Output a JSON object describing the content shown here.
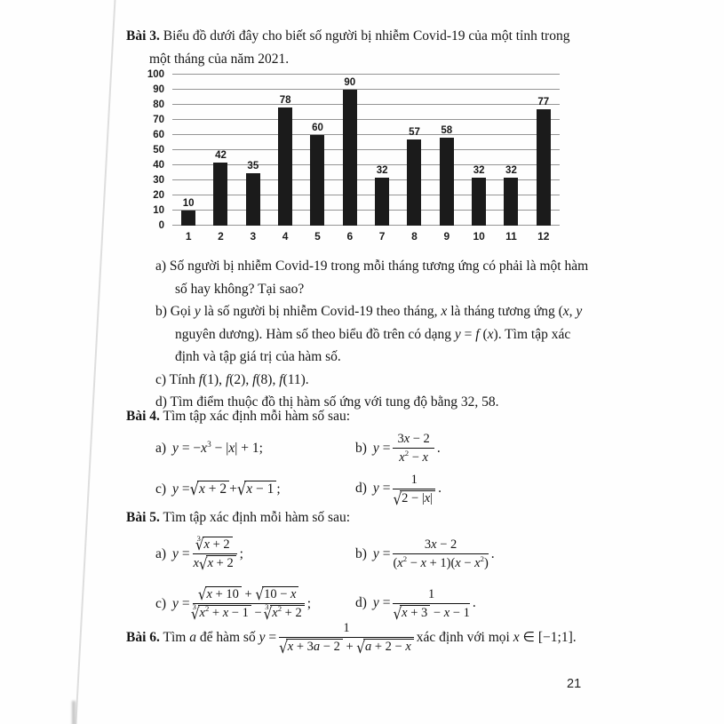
{
  "page_number": "21",
  "math": {
    "sqrt_symbol": "√",
    "root_index_3": "3"
  },
  "bai3": {
    "heading": [
      {
        "t": "Bài 3.",
        "b": true
      },
      {
        "t": " Biểu đồ dưới đây cho biết số người bị nhiễm Covid-19 của một tỉnh trong"
      }
    ],
    "heading2": "một tháng của năm 2021.",
    "qa1": "a) Số người bị nhiễm Covid-19 trong mỗi tháng tương ứng có phải là một hàm",
    "qa2": "số hay không? Tại sao?",
    "qb1": [
      {
        "t": "b) Gọi "
      },
      {
        "t": "y",
        "i": true
      },
      {
        "t": " là số người bị nhiễm Covid-19 theo tháng, "
      },
      {
        "t": "x",
        "i": true
      },
      {
        "t": " là tháng tương ứng ("
      },
      {
        "t": "x",
        "i": true
      },
      {
        "t": ", "
      },
      {
        "t": "y",
        "i": true
      }
    ],
    "qb2": [
      {
        "t": "nguyên dương). Hàm số theo biểu đồ trên có dạng "
      },
      {
        "t": "y",
        "i": true
      },
      {
        "t": " = "
      },
      {
        "t": "f",
        "i": true
      },
      {
        "t": " ("
      },
      {
        "t": "x",
        "i": true
      },
      {
        "t": "). Tìm tập xác"
      }
    ],
    "qb3": "định và tập giá trị của hàm số.",
    "qc": [
      {
        "t": "c) Tính "
      },
      {
        "t": "f",
        "i": true
      },
      {
        "t": "(1), "
      },
      {
        "t": "f",
        "i": true
      },
      {
        "t": "(2), "
      },
      {
        "t": "f",
        "i": true
      },
      {
        "t": "(8), "
      },
      {
        "t": "f",
        "i": true
      },
      {
        "t": "(11)."
      }
    ],
    "qd": "d) Tìm điểm thuộc đồ thị hàm số ứng với tung độ bằng 32, 58."
  },
  "chart_data": {
    "type": "bar",
    "title": "",
    "categories": [
      "1",
      "2",
      "3",
      "4",
      "5",
      "6",
      "7",
      "8",
      "9",
      "10",
      "11",
      "12"
    ],
    "values": [
      10,
      42,
      35,
      78,
      60,
      90,
      32,
      57,
      58,
      32,
      32,
      77
    ],
    "xlabel": "",
    "ylabel": "",
    "ylim": [
      0,
      100
    ],
    "ytick_step": 10,
    "grid": true,
    "legend": "none",
    "bar_color": "#1b1b1b",
    "gridline_color": "#949494"
  },
  "bai4": {
    "heading": [
      {
        "t": "Bài 4.",
        "b": true
      },
      {
        "t": " Tìm tập xác định mỗi hàm số sau:"
      }
    ],
    "a_label": "a)",
    "a_formula": [
      {
        "t": "y",
        "i": true
      },
      {
        "t": " = −"
      },
      {
        "t": "x",
        "i": true
      },
      {
        "t": "3",
        "sup": true
      },
      {
        "t": " − |"
      },
      {
        "t": "x",
        "i": true
      },
      {
        "t": "| + 1;"
      }
    ],
    "b_label": "b)",
    "b_lead": [
      {
        "t": "y",
        "i": true
      },
      {
        "t": " = "
      }
    ],
    "b_num": [
      {
        "t": "3"
      },
      {
        "t": "x",
        "i": true
      },
      {
        "t": " − 2"
      }
    ],
    "b_den": [
      {
        "t": "x",
        "i": true
      },
      {
        "t": "2",
        "sup": true
      },
      {
        "t": " − "
      },
      {
        "t": "x",
        "i": true
      }
    ],
    "b_tail": ".",
    "c_label": "c)",
    "c_lead": [
      {
        "t": "y",
        "i": true
      },
      {
        "t": " = "
      }
    ],
    "c_rad1": [
      {
        "t": "x",
        "i": true
      },
      {
        "t": " + 2"
      }
    ],
    "c_mid": " + ",
    "c_rad2": [
      {
        "t": "x",
        "i": true
      },
      {
        "t": " − 1"
      }
    ],
    "c_tail": " ;",
    "d_label": "d)",
    "d_lead": [
      {
        "t": "y",
        "i": true
      },
      {
        "t": " = "
      }
    ],
    "d_num": "1",
    "d_den_rad": [
      {
        "t": "2 − |"
      },
      {
        "t": "x",
        "i": true
      },
      {
        "t": "|"
      }
    ],
    "d_tail": "."
  },
  "bai5": {
    "heading": [
      {
        "t": "Bài 5.",
        "b": true
      },
      {
        "t": " Tìm tập xác định mỗi hàm số sau:"
      }
    ],
    "a_label": "a)",
    "a_lead": [
      {
        "t": "y",
        "i": true
      },
      {
        "t": " = "
      }
    ],
    "a_num_rad": [
      {
        "t": "x",
        "i": true
      },
      {
        "t": " + 2"
      }
    ],
    "a_den_pre": [
      {
        "t": "x",
        "i": true
      }
    ],
    "a_den_rad": [
      {
        "t": "x",
        "i": true
      },
      {
        "t": " + 2"
      }
    ],
    "a_tail": " ;",
    "b_label": "b)",
    "b_lead": [
      {
        "t": "y",
        "i": true
      },
      {
        "t": " = "
      }
    ],
    "b_num": [
      {
        "t": "3"
      },
      {
        "t": "x",
        "i": true
      },
      {
        "t": " − 2"
      }
    ],
    "b_den": [
      {
        "t": "("
      },
      {
        "t": "x",
        "i": true
      },
      {
        "t": "2",
        "sup": true
      },
      {
        "t": " − "
      },
      {
        "t": "x",
        "i": true
      },
      {
        "t": " + 1)("
      },
      {
        "t": "x",
        "i": true
      },
      {
        "t": " − "
      },
      {
        "t": "x",
        "i": true
      },
      {
        "t": "2",
        "sup": true
      },
      {
        "t": ")"
      }
    ],
    "b_tail": ".",
    "c_label": "c)",
    "c_lead": [
      {
        "t": "y",
        "i": true
      },
      {
        "t": " = "
      }
    ],
    "c_num_rad1": [
      {
        "t": "x",
        "i": true
      },
      {
        "t": " + 10"
      }
    ],
    "c_num_mid": " + ",
    "c_num_rad2": [
      {
        "t": "10 − "
      },
      {
        "t": "x",
        "i": true
      }
    ],
    "c_den_rad1": [
      {
        "t": "x",
        "i": true
      },
      {
        "t": "2",
        "sup": true
      },
      {
        "t": " + "
      },
      {
        "t": "x",
        "i": true
      },
      {
        "t": " − 1"
      }
    ],
    "c_den_mid": " − ",
    "c_den_rad2": [
      {
        "t": "x",
        "i": true
      },
      {
        "t": "2",
        "sup": true
      },
      {
        "t": " + 2"
      }
    ],
    "c_tail": " ;",
    "d_label": "d)",
    "d_lead": [
      {
        "t": "y",
        "i": true
      },
      {
        "t": " = "
      }
    ],
    "d_num": "1",
    "d_den_rad": [
      {
        "t": "x",
        "i": true
      },
      {
        "t": " + 3"
      }
    ],
    "d_den_post": [
      {
        "t": " − "
      },
      {
        "t": "x",
        "i": true
      },
      {
        "t": " − 1"
      }
    ],
    "d_tail": "."
  },
  "bai6": {
    "lead": [
      {
        "t": "Bài 6.",
        "b": true
      },
      {
        "t": " Tìm "
      },
      {
        "t": "a",
        "i": true
      },
      {
        "t": " để hàm số "
      },
      {
        "t": "y",
        "i": true
      },
      {
        "t": " = "
      }
    ],
    "num": "1",
    "den_rad1": [
      {
        "t": "x",
        "i": true
      },
      {
        "t": " + 3"
      },
      {
        "t": "a",
        "i": true
      },
      {
        "t": " − 2"
      }
    ],
    "den_mid": " + ",
    "den_rad2": [
      {
        "t": "a",
        "i": true
      },
      {
        "t": " + 2 − "
      },
      {
        "t": "x",
        "i": true
      }
    ],
    "tail": [
      {
        "t": " xác định với mọi "
      },
      {
        "t": "x",
        "i": true
      },
      {
        "t": " ∈ [−1;1]."
      }
    ]
  }
}
